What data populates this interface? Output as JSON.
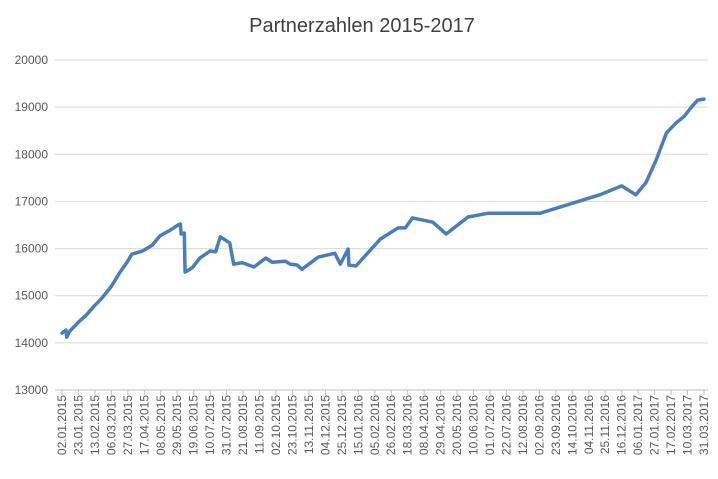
{
  "chart_data": {
    "type": "line",
    "title": "Partnerzahlen 2015-2017",
    "x": [
      "02.01.2015",
      "07.01.2015",
      "08.01.2015",
      "12.01.2015",
      "23.01.2015",
      "02.02.2015",
      "12.02.2015",
      "22.02.2015",
      "06.03.2015",
      "17.03.2015",
      "26.03.2015",
      "01.04.2015",
      "15.04.2015",
      "27.04.2015",
      "07.05.2015",
      "20.05.2015",
      "30.05.2015",
      "02.06.2015",
      "03.06.2015",
      "07.06.2015",
      "08.06.2015",
      "17.06.2015",
      "27.06.2015",
      "10.07.2015",
      "17.07.2015",
      "23.07.2015",
      "04.08.2015",
      "09.08.2015",
      "20.08.2015",
      "04.09.2015",
      "19.09.2015",
      "27.09.2015",
      "14.10.2015",
      "20.10.2015",
      "29.10.2015",
      "04.11.2015",
      "25.11.2015",
      "16.12.2015",
      "23.12.2015",
      "02.01.2016",
      "03.01.2016",
      "12.01.2016",
      "12.02.2016",
      "06.03.2016",
      "15.03.2016",
      "24.03.2016",
      "19.04.2016",
      "06.05.2016",
      "03.06.2016",
      "29.06.2016",
      "03.09.2016",
      "18.11.2016",
      "16.12.2016",
      "03.01.2017",
      "16.01.2017",
      "29.01.2017",
      "11.02.2017",
      "23.02.2017",
      "06.03.2017",
      "16.03.2017",
      "23.03.2017",
      "31.03.2017"
    ],
    "series": [
      {
        "color": "#4a7ebb",
        "values": [
          14210,
          14270,
          14120,
          14250,
          14440,
          14590,
          14780,
          14950,
          15200,
          15500,
          15710,
          15880,
          15950,
          16070,
          16270,
          16390,
          16500,
          16520,
          16310,
          16330,
          15500,
          15590,
          15800,
          15950,
          15930,
          16250,
          16120,
          15670,
          15700,
          15610,
          15800,
          15710,
          15730,
          15670,
          15650,
          15560,
          15820,
          15900,
          15670,
          15990,
          15650,
          15630,
          16200,
          16440,
          16440,
          16650,
          16560,
          16310,
          16670,
          16750,
          16750,
          17140,
          17330,
          17140,
          17400,
          17880,
          18450,
          18660,
          18810,
          19020,
          19150,
          19170
        ]
      }
    ],
    "xlim": [
      "02.01.2015",
      "31.03.2017"
    ],
    "xticks": [
      "02.01.2015",
      "23.01.2015",
      "13.02.2015",
      "06.03.2015",
      "27.03.2015",
      "17.04.2015",
      "08.05.2015",
      "29.05.2015",
      "19.06.2015",
      "10.07.2015",
      "31.07.2015",
      "21.08.2015",
      "11.09.2015",
      "02.10.2015",
      "23.10.2015",
      "13.11.2015",
      "04.12.2015",
      "25.12.2015",
      "15.01.2016",
      "05.02.2016",
      "26.02.2016",
      "18.03.2016",
      "08.04.2016",
      "29.04.2016",
      "20.05.2016",
      "10.06.2016",
      "01.07.2016",
      "22.07.2016",
      "12.08.2016",
      "02.09.2016",
      "23.09.2016",
      "14.10.2016",
      "04.11.2016",
      "25.11.2016",
      "16.12.2016",
      "06.01.2017",
      "27.01.2017",
      "17.02.2017",
      "10.03.2017",
      "31.03.2017"
    ],
    "ylim": [
      13000,
      20000
    ],
    "yticks": [
      13000,
      14000,
      15000,
      16000,
      17000,
      18000,
      19000,
      20000
    ],
    "grid": true
  }
}
